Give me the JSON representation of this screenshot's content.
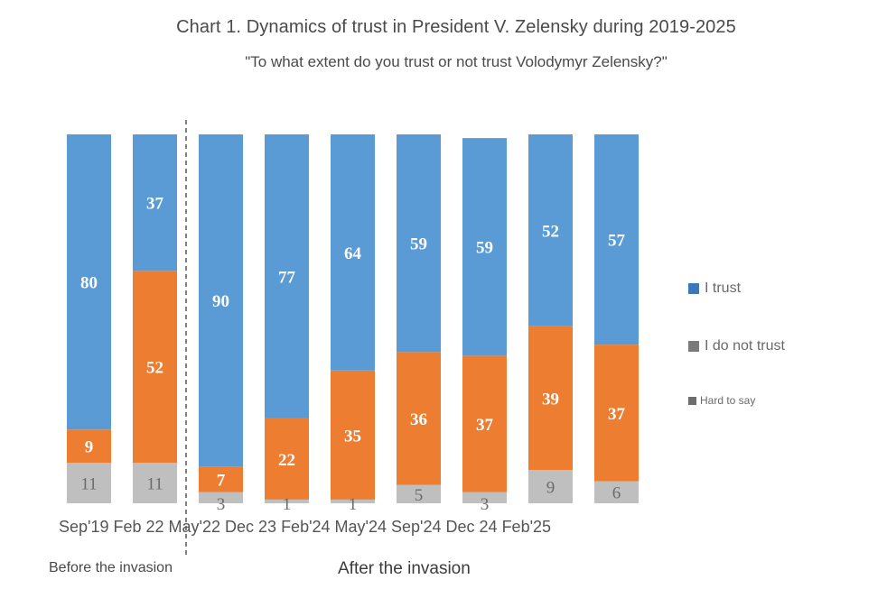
{
  "chart_data": {
    "type": "bar",
    "stacked": true,
    "percent": true,
    "title": "Chart 1. Dynamics of trust in President V. Zelensky during 2019-2025",
    "subtitle": "\"To what extent do you trust or not trust Volodymyr Zelensky?\"",
    "xlabel": "",
    "ylabel": "",
    "ylim": [
      0,
      100
    ],
    "grid": false,
    "categories": [
      "Sep'19",
      "Feb 22",
      "May'22",
      "Dec 23",
      "Feb'24",
      "May'24",
      "Sep'24",
      "Dec 24",
      "Feb'25"
    ],
    "series": [
      {
        "name": "I trust",
        "color": "#5b9bd5",
        "values": [
          80,
          37,
          90,
          77,
          64,
          59,
          59,
          52,
          57
        ]
      },
      {
        "name": "I do not trust",
        "color": "#ed7d31",
        "values": [
          9,
          52,
          7,
          22,
          35,
          36,
          37,
          39,
          37
        ]
      },
      {
        "name": "Hard to say",
        "color": "#bfbfbf",
        "values": [
          11,
          11,
          3,
          1,
          1,
          5,
          3,
          9,
          6
        ]
      }
    ],
    "legend": {
      "position": "right",
      "entries": [
        {
          "label": "I trust",
          "swatch_color": "#3a78b8"
        },
        {
          "label": "I do not trust",
          "swatch_color": "#7a7a7a"
        },
        {
          "label": "Hard to say",
          "swatch_color": "#6e6e6e"
        }
      ]
    },
    "divider": {
      "between": [
        "Feb 22",
        "May'22"
      ],
      "style": "dashed"
    },
    "period_labels": {
      "before": "Before the invasion",
      "after": "After the invasion"
    }
  }
}
